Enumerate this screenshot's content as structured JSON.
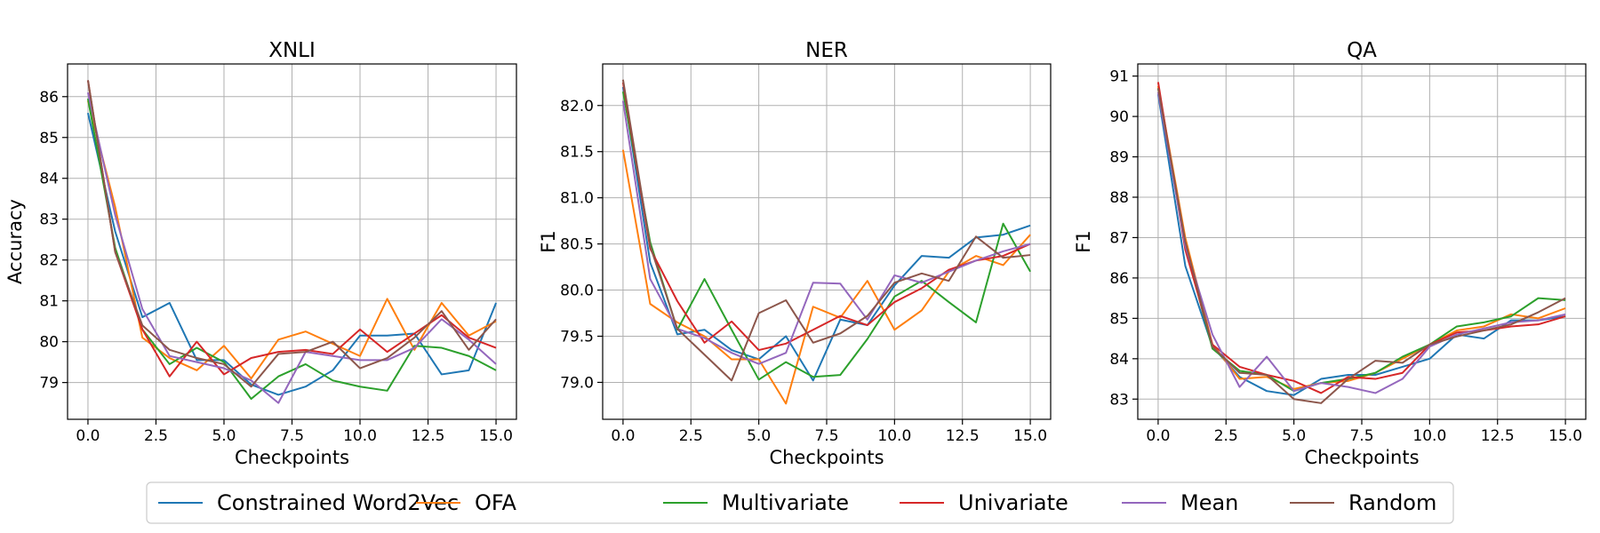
{
  "legend": [
    {
      "name": "Constrained Word2Vec",
      "color": "#1f77b4"
    },
    {
      "name": "OFA",
      "color": "#ff7f0e"
    },
    {
      "name": "Multivariate",
      "color": "#2ca02c"
    },
    {
      "name": "Univariate",
      "color": "#d62728"
    },
    {
      "name": "Mean",
      "color": "#9467bd"
    },
    {
      "name": "Random",
      "color": "#8c564b"
    }
  ],
  "chart_data": [
    {
      "type": "line",
      "title": "XNLI",
      "xlabel": "Checkpoints",
      "ylabel": "Accuracy",
      "xlim": [
        -0.75,
        15.75
      ],
      "ylim": [
        78.1,
        86.8
      ],
      "xticks": [
        0.0,
        2.5,
        5.0,
        7.5,
        10.0,
        12.5,
        15.0
      ],
      "xtick_labels": [
        "0.0",
        "2.5",
        "5.0",
        "7.5",
        "10.0",
        "12.5",
        "15.0"
      ],
      "yticks": [
        79,
        80,
        81,
        82,
        83,
        84,
        85,
        86
      ],
      "ytick_labels": [
        "79",
        "80",
        "81",
        "82",
        "83",
        "84",
        "85",
        "86"
      ],
      "grid": true,
      "x": [
        0,
        1,
        2,
        3,
        4,
        5,
        6,
        7,
        8,
        9,
        10,
        11,
        12,
        13,
        14,
        15
      ],
      "series": [
        {
          "name": "Constrained Word2Vec",
          "values": [
            85.6,
            82.7,
            80.6,
            80.95,
            79.55,
            79.55,
            78.95,
            78.7,
            78.9,
            79.3,
            80.15,
            80.15,
            80.2,
            79.2,
            79.3,
            80.95
          ]
        },
        {
          "name": "OFA",
          "values": [
            85.9,
            83.3,
            80.1,
            79.6,
            79.3,
            79.9,
            79.1,
            80.05,
            80.25,
            79.95,
            79.65,
            81.05,
            79.8,
            80.95,
            80.15,
            80.5
          ]
        },
        {
          "name": "Multivariate",
          "values": [
            85.95,
            82.3,
            80.3,
            79.45,
            79.85,
            79.5,
            78.6,
            79.15,
            79.45,
            79.05,
            78.9,
            78.8,
            79.9,
            79.85,
            79.65,
            79.3
          ]
        },
        {
          "name": "Univariate",
          "values": [
            86.4,
            82.2,
            80.3,
            79.15,
            80.0,
            79.2,
            79.6,
            79.75,
            79.8,
            79.7,
            80.3,
            79.75,
            80.2,
            80.65,
            80.1,
            79.85
          ]
        },
        {
          "name": "Mean",
          "values": [
            86.1,
            83.1,
            80.8,
            79.65,
            79.5,
            79.35,
            79.05,
            78.5,
            79.75,
            79.65,
            79.55,
            79.55,
            79.85,
            80.55,
            80.05,
            79.45
          ]
        },
        {
          "name": "Random",
          "values": [
            86.4,
            82.2,
            80.4,
            79.8,
            79.6,
            79.45,
            78.9,
            79.7,
            79.75,
            80.0,
            79.35,
            79.6,
            80.1,
            80.75,
            79.8,
            80.55
          ]
        }
      ]
    },
    {
      "type": "line",
      "title": "NER",
      "xlabel": "Checkpoints",
      "ylabel": "F1",
      "xlim": [
        -0.75,
        15.75
      ],
      "ylim": [
        78.6,
        82.45
      ],
      "xticks": [
        0.0,
        2.5,
        5.0,
        7.5,
        10.0,
        12.5,
        15.0
      ],
      "xtick_labels": [
        "0.0",
        "2.5",
        "5.0",
        "7.5",
        "10.0",
        "12.5",
        "15.0"
      ],
      "yticks": [
        79.0,
        79.5,
        80.0,
        80.5,
        81.0,
        81.5,
        82.0
      ],
      "ytick_labels": [
        "79.0",
        "79.5",
        "80.0",
        "80.5",
        "81.0",
        "81.5",
        "82.0"
      ],
      "grid": true,
      "x": [
        0,
        1,
        2,
        3,
        4,
        5,
        6,
        7,
        8,
        9,
        10,
        11,
        12,
        13,
        14,
        15
      ],
      "series": [
        {
          "name": "Constrained Word2Vec",
          "values": [
            82.2,
            80.3,
            79.52,
            79.57,
            79.35,
            79.25,
            79.5,
            79.02,
            79.68,
            79.62,
            80.05,
            80.37,
            80.35,
            80.57,
            80.6,
            80.7
          ]
        },
        {
          "name": "OFA",
          "values": [
            81.52,
            79.85,
            79.65,
            79.5,
            79.25,
            79.25,
            78.77,
            79.82,
            79.7,
            80.1,
            79.57,
            79.78,
            80.2,
            80.37,
            80.27,
            80.6
          ]
        },
        {
          "name": "Multivariate",
          "values": [
            82.15,
            80.52,
            79.57,
            80.12,
            79.57,
            79.03,
            79.22,
            79.06,
            79.08,
            79.47,
            79.93,
            80.1,
            79.87,
            79.65,
            80.72,
            80.2
          ]
        },
        {
          "name": "Univariate",
          "values": [
            82.25,
            80.45,
            79.88,
            79.43,
            79.66,
            79.35,
            79.42,
            79.57,
            79.72,
            79.62,
            79.87,
            80.02,
            80.22,
            80.32,
            80.37,
            80.5
          ]
        },
        {
          "name": "Mean",
          "values": [
            82.05,
            80.12,
            79.58,
            79.48,
            79.32,
            79.2,
            79.32,
            80.08,
            80.07,
            79.68,
            80.16,
            80.08,
            80.2,
            80.32,
            80.42,
            80.5
          ]
        },
        {
          "name": "Random",
          "values": [
            82.28,
            80.48,
            79.58,
            79.3,
            79.02,
            79.75,
            79.89,
            79.43,
            79.53,
            79.72,
            80.08,
            80.18,
            80.1,
            80.58,
            80.35,
            80.38
          ]
        }
      ]
    },
    {
      "type": "line",
      "title": "QA",
      "xlabel": "Checkpoints",
      "ylabel": "F1",
      "xlim": [
        -0.75,
        15.75
      ],
      "ylim": [
        82.5,
        91.3
      ],
      "xticks": [
        0.0,
        2.5,
        5.0,
        7.5,
        10.0,
        12.5,
        15.0
      ],
      "xtick_labels": [
        "0.0",
        "2.5",
        "5.0",
        "7.5",
        "10.0",
        "12.5",
        "15.0"
      ],
      "yticks": [
        83,
        84,
        85,
        86,
        87,
        88,
        89,
        90,
        91
      ],
      "ytick_labels": [
        "83",
        "84",
        "85",
        "86",
        "87",
        "88",
        "89",
        "90",
        "91"
      ],
      "grid": true,
      "x": [
        0,
        1,
        2,
        3,
        4,
        5,
        6,
        7,
        8,
        9,
        10,
        11,
        12,
        13,
        14,
        15
      ],
      "series": [
        {
          "name": "Constrained Word2Vec",
          "values": [
            90.55,
            86.3,
            84.3,
            83.55,
            83.2,
            83.1,
            83.5,
            83.6,
            83.6,
            83.8,
            84.0,
            84.6,
            84.5,
            84.95,
            84.95,
            85.05
          ]
        },
        {
          "name": "OFA",
          "values": [
            90.75,
            87.0,
            84.35,
            83.5,
            83.55,
            83.25,
            83.4,
            83.45,
            83.65,
            84.0,
            84.35,
            84.7,
            84.8,
            85.1,
            85.0,
            85.25
          ]
        },
        {
          "name": "Multivariate",
          "values": [
            90.7,
            86.8,
            84.25,
            83.7,
            83.6,
            83.2,
            83.4,
            83.5,
            83.65,
            84.05,
            84.35,
            84.8,
            84.9,
            85.05,
            85.5,
            85.45
          ]
        },
        {
          "name": "Univariate",
          "values": [
            90.85,
            86.7,
            84.35,
            83.8,
            83.6,
            83.45,
            83.15,
            83.55,
            83.5,
            83.65,
            84.35,
            84.65,
            84.7,
            84.8,
            84.85,
            85.05
          ]
        },
        {
          "name": "Mean",
          "values": [
            90.6,
            86.8,
            84.6,
            83.3,
            84.05,
            83.2,
            83.4,
            83.3,
            83.15,
            83.5,
            84.3,
            84.6,
            84.75,
            84.9,
            84.95,
            85.1
          ]
        },
        {
          "name": "Random",
          "values": [
            90.7,
            86.9,
            84.3,
            83.65,
            83.6,
            83.0,
            82.9,
            83.5,
            83.95,
            83.9,
            84.35,
            84.55,
            84.7,
            84.85,
            85.15,
            85.5
          ]
        }
      ]
    }
  ]
}
